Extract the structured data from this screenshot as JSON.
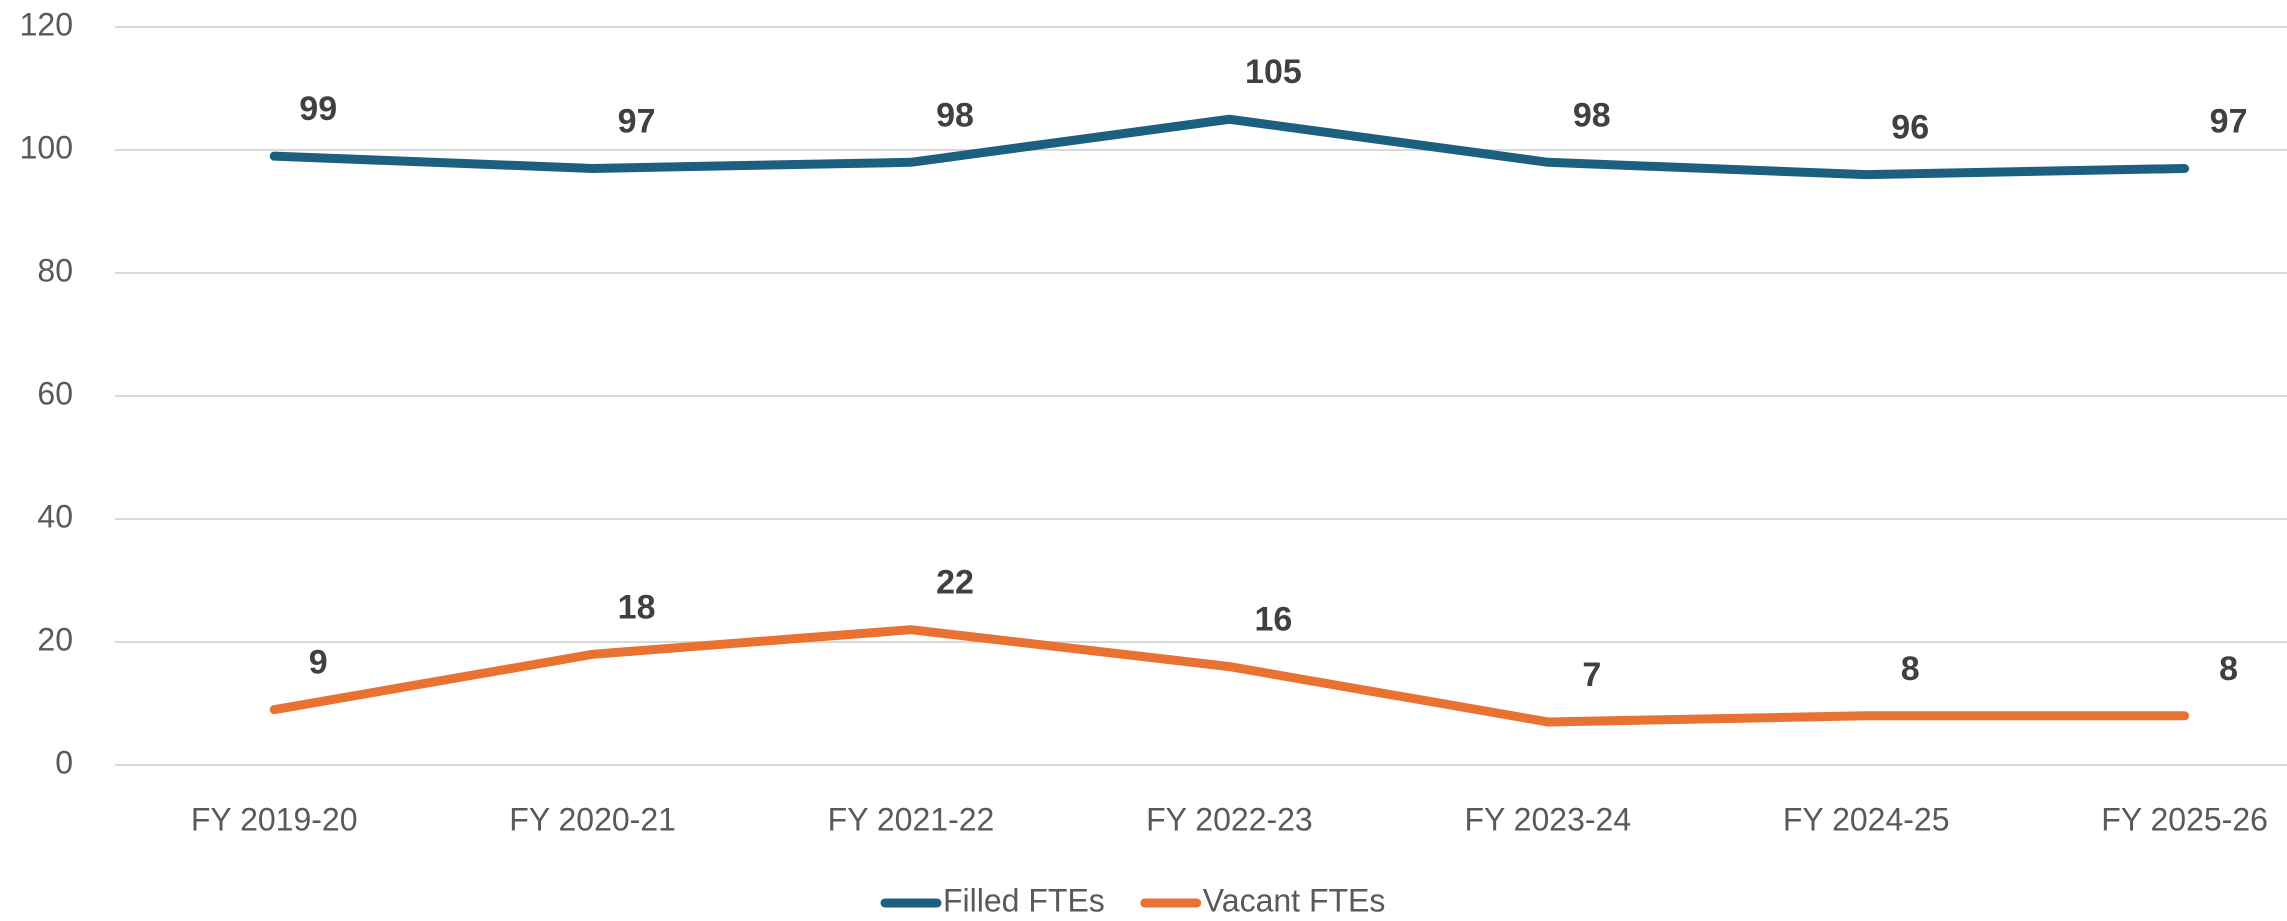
{
  "chart_data": {
    "type": "line",
    "categories": [
      "FY 2019-20",
      "FY 2020-21",
      "FY 2021-22",
      "FY 2022-23",
      "FY 2023-24",
      "FY 2024-25",
      "FY 2025-26"
    ],
    "series": [
      {
        "name": "Filled FTEs",
        "color": "#1d5f80",
        "values": [
          99,
          97,
          98,
          105,
          98,
          96,
          97
        ]
      },
      {
        "name": "Vacant FTEs",
        "color": "#e97132",
        "values": [
          9,
          18,
          22,
          16,
          7,
          8,
          8
        ]
      }
    ],
    "ylim": [
      0,
      120
    ],
    "yticks": [
      0,
      20,
      40,
      60,
      80,
      100,
      120
    ],
    "grid": true,
    "legend": "bottom"
  }
}
